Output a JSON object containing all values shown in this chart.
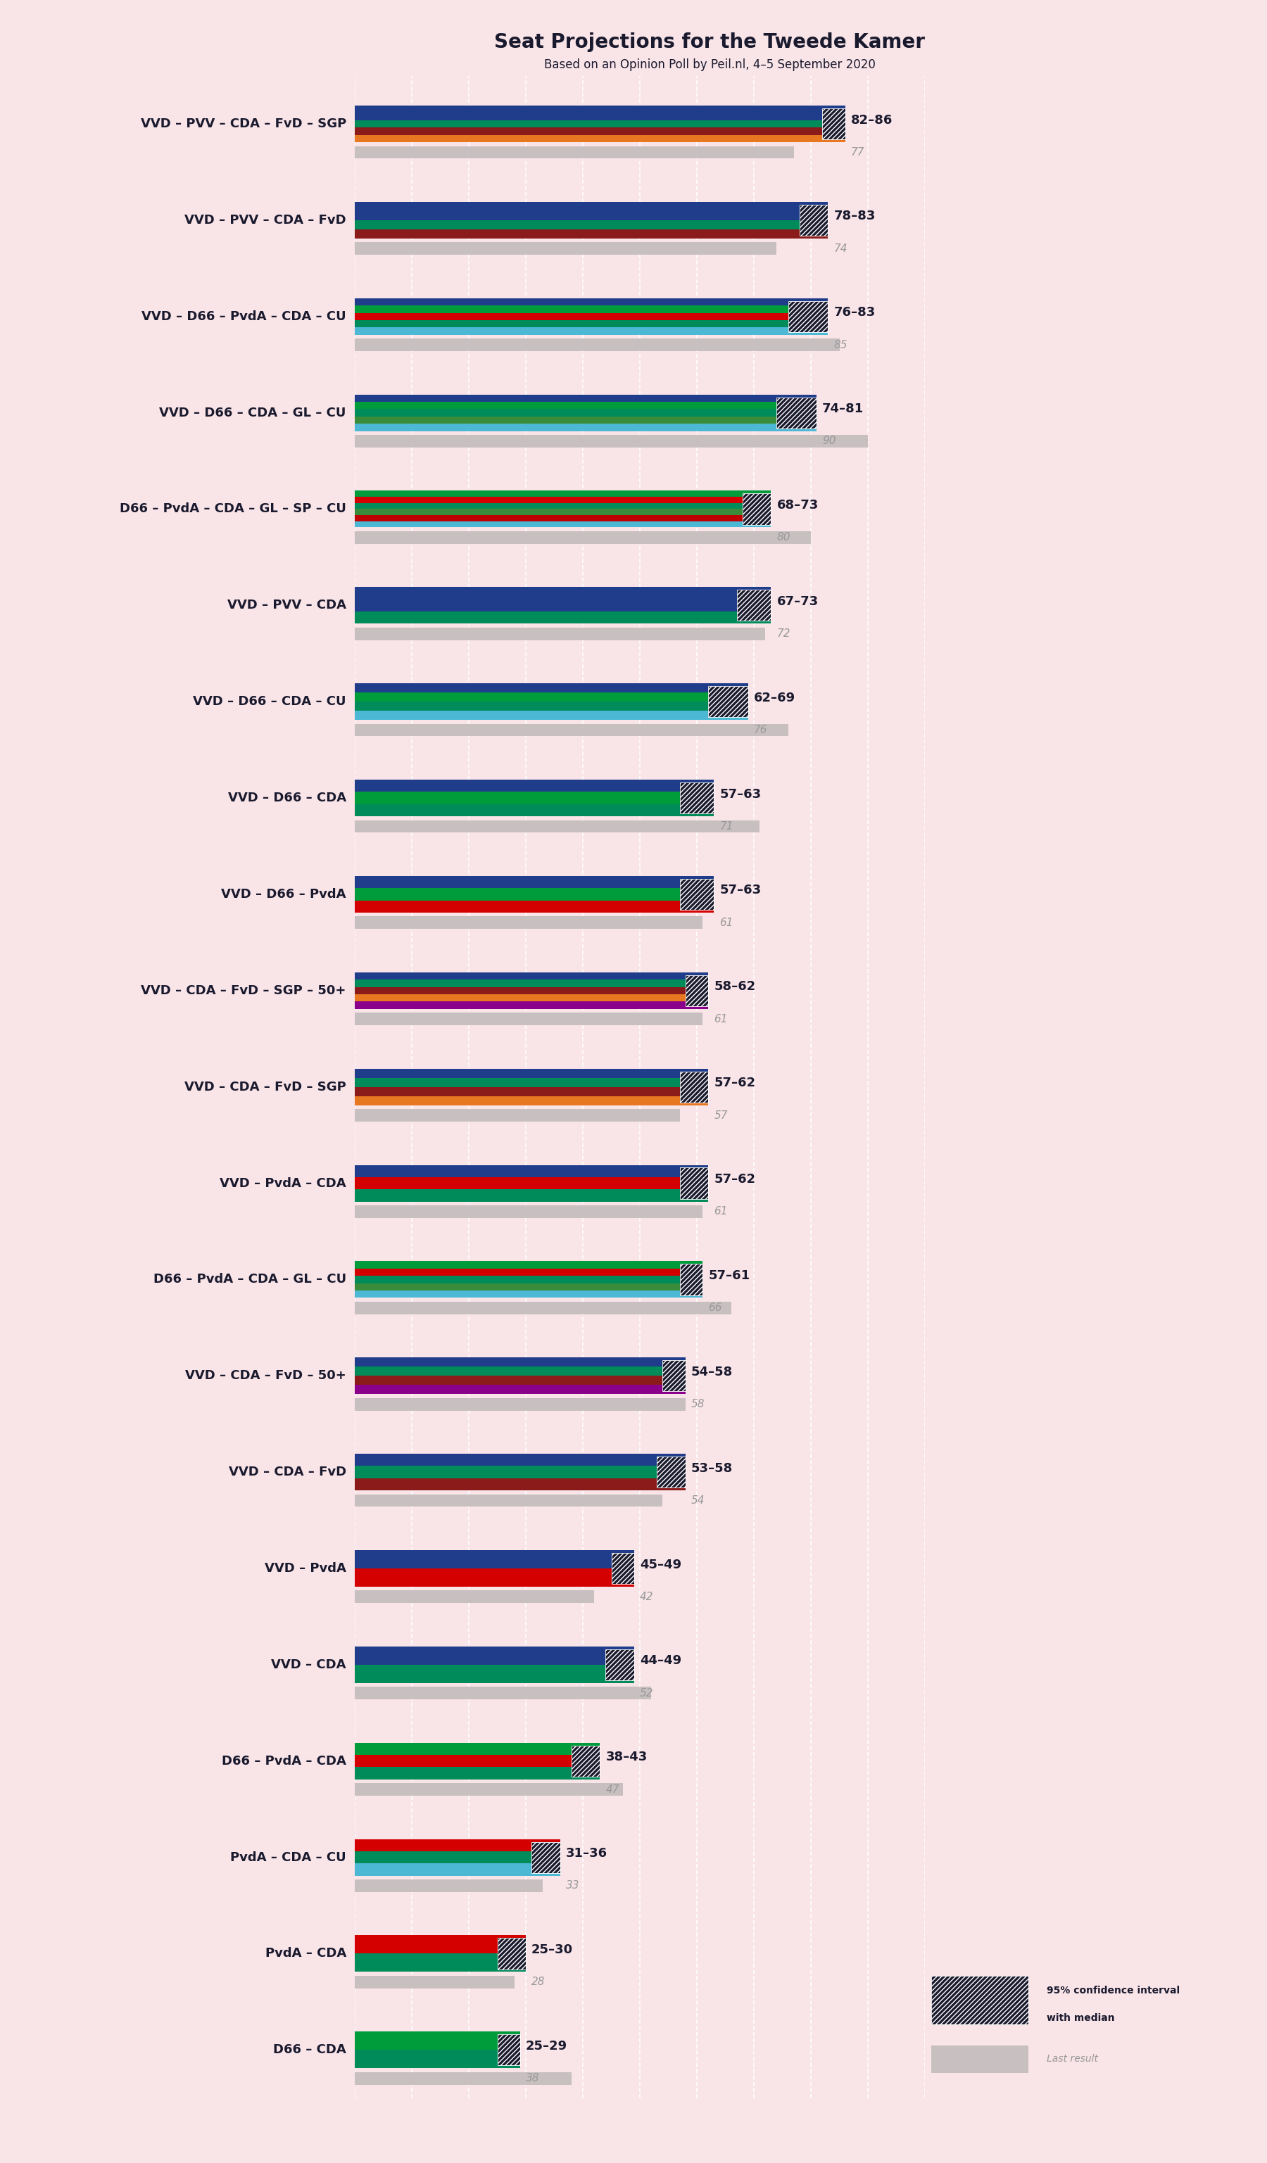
{
  "title": "Seat Projections for the Tweede Kamer",
  "subtitle": "Based on an Opinion Poll by Peil.nl, 4–5 September 2020",
  "background_color": "#f9e4e8",
  "coalitions": [
    {
      "label": "VVD – PVV – CDA – FvD – SGP",
      "low": 82,
      "high": 86,
      "last": 77,
      "underline": false
    },
    {
      "label": "VVD – PVV – CDA – FvD",
      "low": 78,
      "high": 83,
      "last": 74,
      "underline": false
    },
    {
      "label": "VVD – D66 – PvdA – CDA – CU",
      "low": 76,
      "high": 83,
      "last": 85,
      "underline": false
    },
    {
      "label": "VVD – D66 – CDA – GL – CU",
      "low": 74,
      "high": 81,
      "last": 90,
      "underline": false
    },
    {
      "label": "D66 – PvdA – CDA – GL – SP – CU",
      "low": 68,
      "high": 73,
      "last": 80,
      "underline": false
    },
    {
      "label": "VVD – PVV – CDA",
      "low": 67,
      "high": 73,
      "last": 72,
      "underline": false
    },
    {
      "label": "VVD – D66 – CDA – CU",
      "low": 62,
      "high": 69,
      "last": 76,
      "underline": true
    },
    {
      "label": "VVD – D66 – CDA",
      "low": 57,
      "high": 63,
      "last": 71,
      "underline": false
    },
    {
      "label": "VVD – D66 – PvdA",
      "low": 57,
      "high": 63,
      "last": 61,
      "underline": false
    },
    {
      "label": "VVD – CDA – FvD – SGP – 50+",
      "low": 58,
      "high": 62,
      "last": 61,
      "underline": false
    },
    {
      "label": "VVD – CDA – FvD – SGP",
      "low": 57,
      "high": 62,
      "last": 57,
      "underline": false
    },
    {
      "label": "VVD – PvdA – CDA",
      "low": 57,
      "high": 62,
      "last": 61,
      "underline": false
    },
    {
      "label": "D66 – PvdA – CDA – GL – CU",
      "low": 57,
      "high": 61,
      "last": 66,
      "underline": false
    },
    {
      "label": "VVD – CDA – FvD – 50+",
      "low": 54,
      "high": 58,
      "last": 58,
      "underline": false
    },
    {
      "label": "VVD – CDA – FvD",
      "low": 53,
      "high": 58,
      "last": 54,
      "underline": false
    },
    {
      "label": "VVD – PvdA",
      "low": 45,
      "high": 49,
      "last": 42,
      "underline": false
    },
    {
      "label": "VVD – CDA",
      "low": 44,
      "high": 49,
      "last": 52,
      "underline": false
    },
    {
      "label": "D66 – PvdA – CDA",
      "low": 38,
      "high": 43,
      "last": 47,
      "underline": false
    },
    {
      "label": "PvdA – CDA – CU",
      "low": 31,
      "high": 36,
      "last": 33,
      "underline": false
    },
    {
      "label": "PvdA – CDA",
      "low": 25,
      "high": 30,
      "last": 28,
      "underline": false
    },
    {
      "label": "D66 – CDA",
      "low": 25,
      "high": 29,
      "last": 38,
      "underline": false
    }
  ],
  "coalition_party_colors": [
    [
      "#1f3d8a",
      "#1f3d8a",
      "#008c5a",
      "#8b1a1a",
      "#e87722"
    ],
    [
      "#1f3d8a",
      "#1f3d8a",
      "#008c5a",
      "#8b1a1a"
    ],
    [
      "#1f3d8a",
      "#009b3a",
      "#d40000",
      "#008c5a",
      "#4db8d4"
    ],
    [
      "#1f3d8a",
      "#009b3a",
      "#008c5a",
      "#3a8c3a",
      "#4db8d4"
    ],
    [
      "#009b3a",
      "#d40000",
      "#008c5a",
      "#3a8c3a",
      "#c00000",
      "#4db8d4"
    ],
    [
      "#1f3d8a",
      "#1f3d8a",
      "#008c5a"
    ],
    [
      "#1f3d8a",
      "#009b3a",
      "#008c5a",
      "#4db8d4"
    ],
    [
      "#1f3d8a",
      "#009b3a",
      "#008c5a"
    ],
    [
      "#1f3d8a",
      "#009b3a",
      "#d40000"
    ],
    [
      "#1f3d8a",
      "#008c5a",
      "#8b1a1a",
      "#e87722",
      "#8b008b"
    ],
    [
      "#1f3d8a",
      "#008c5a",
      "#8b1a1a",
      "#e87722"
    ],
    [
      "#1f3d8a",
      "#d40000",
      "#008c5a"
    ],
    [
      "#009b3a",
      "#d40000",
      "#008c5a",
      "#3a8c3a",
      "#4db8d4"
    ],
    [
      "#1f3d8a",
      "#008c5a",
      "#8b1a1a",
      "#8b008b"
    ],
    [
      "#1f3d8a",
      "#008c5a",
      "#8b1a1a"
    ],
    [
      "#1f3d8a",
      "#d40000"
    ],
    [
      "#1f3d8a",
      "#008c5a"
    ],
    [
      "#009b3a",
      "#d40000",
      "#008c5a"
    ],
    [
      "#d40000",
      "#008c5a",
      "#4db8d4"
    ],
    [
      "#d40000",
      "#008c5a"
    ],
    [
      "#009b3a",
      "#008c5a"
    ]
  ],
  "xlim_seats": 100,
  "label_fontsize": 13,
  "title_fontsize": 20,
  "subtitle_fontsize": 12
}
